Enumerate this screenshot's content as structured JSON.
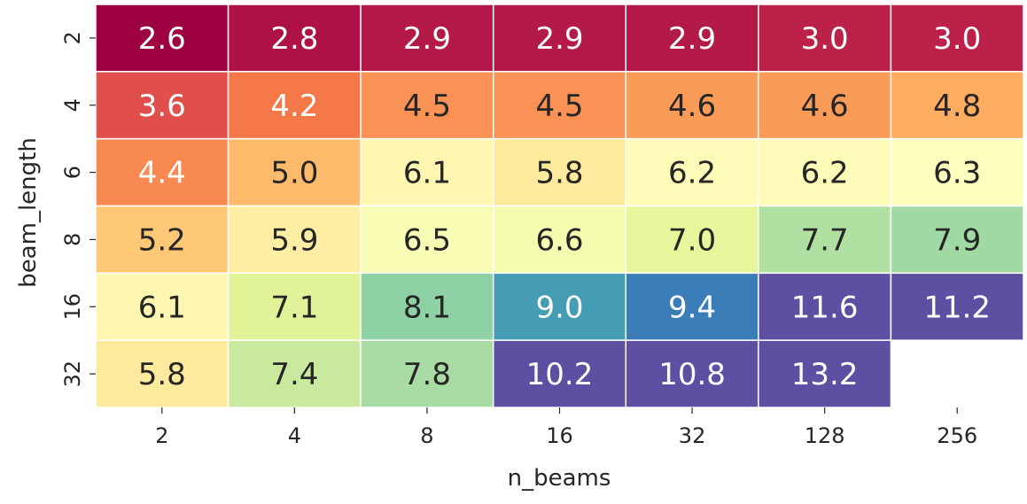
{
  "chart_data": {
    "type": "heatmap",
    "title": "",
    "xlabel": "n_beams",
    "ylabel": "beam_length",
    "x_categories": [
      "2",
      "4",
      "8",
      "16",
      "32",
      "128",
      "256"
    ],
    "y_categories": [
      "2",
      "4",
      "6",
      "8",
      "16",
      "32"
    ],
    "values": [
      [
        2.6,
        2.8,
        2.9,
        2.9,
        2.9,
        3.0,
        3.0
      ],
      [
        3.6,
        4.2,
        4.5,
        4.5,
        4.6,
        4.6,
        4.8
      ],
      [
        4.4,
        5.0,
        6.1,
        5.8,
        6.2,
        6.2,
        6.3
      ],
      [
        5.2,
        5.9,
        6.5,
        6.6,
        7.0,
        7.7,
        7.9
      ],
      [
        6.1,
        7.1,
        8.1,
        9.0,
        9.4,
        11.6,
        11.2
      ],
      [
        5.8,
        7.4,
        7.8,
        10.2,
        10.8,
        13.2,
        null
      ]
    ],
    "value_format": "one decimal",
    "colormap": "Spectral",
    "annotations": true,
    "grid": true,
    "legend": "none"
  }
}
